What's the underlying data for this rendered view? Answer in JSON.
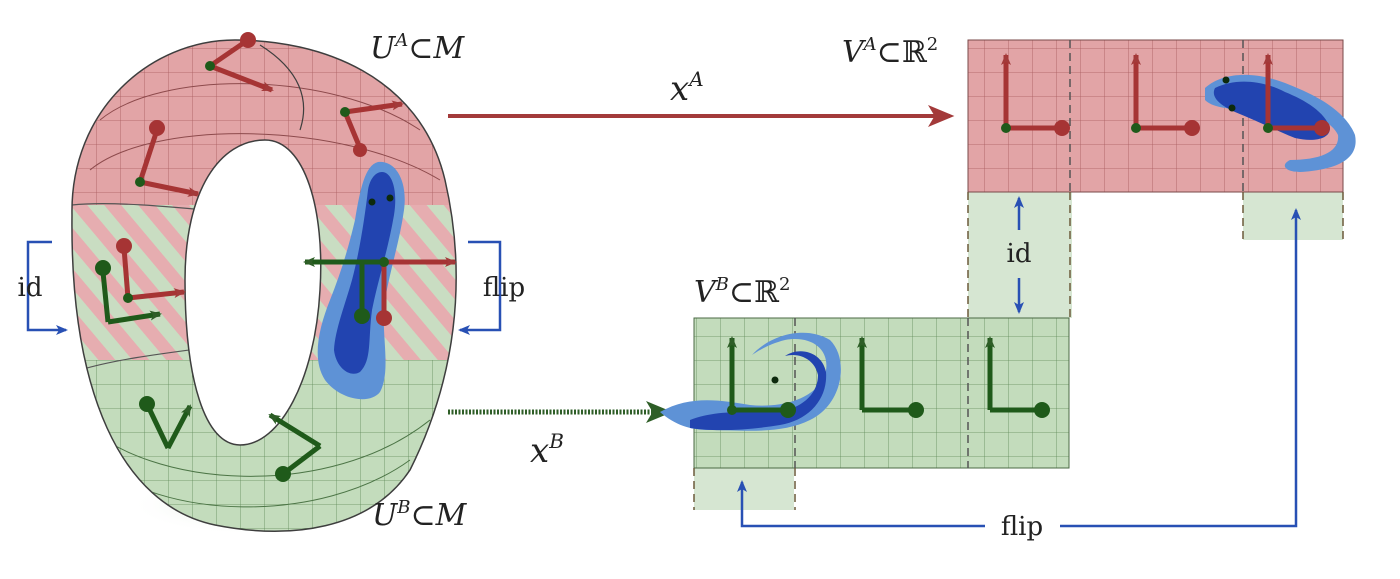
{
  "labels": {
    "chart_UA": {
      "sym": "U",
      "sup": "A",
      "rel": "⊂",
      "space": "M"
    },
    "chart_UB": {
      "sym": "U",
      "sup": "B",
      "rel": "⊂",
      "space": "M"
    },
    "chart_VA": {
      "sym": "V",
      "sup": "A",
      "rel": "⊂",
      "space": "ℝ",
      "exp": "2"
    },
    "chart_VB": {
      "sym": "V",
      "sup": "B",
      "rel": "⊂",
      "space": "ℝ",
      "exp": "2"
    },
    "map_xA": {
      "sym": "x",
      "sup": "A"
    },
    "map_xB": {
      "sym": "x",
      "sup": "B"
    },
    "transition_id_left": "id",
    "transition_flip_right": "flip",
    "transition_id_middle": "id",
    "transition_flip_bottom": "flip"
  },
  "colors": {
    "chart_a_fill": "#e2a4a6",
    "chart_a_grid": "#a75a5c",
    "chart_b_fill": "#c3dcbc",
    "chart_b_grid": "#5f8a58",
    "overlap_fill": "#d6e6d2",
    "arrow_red": "#a33a3a",
    "arrow_green": "#2e5e27",
    "arrow_blue": "#2850b4",
    "gecko_dark": "#2244b0",
    "gecko_light": "#5e92d6",
    "frame_green": "#1f5a1a",
    "frame_red": "#a63434"
  },
  "icons": [
    "gecko-icon",
    "frame-icon"
  ]
}
